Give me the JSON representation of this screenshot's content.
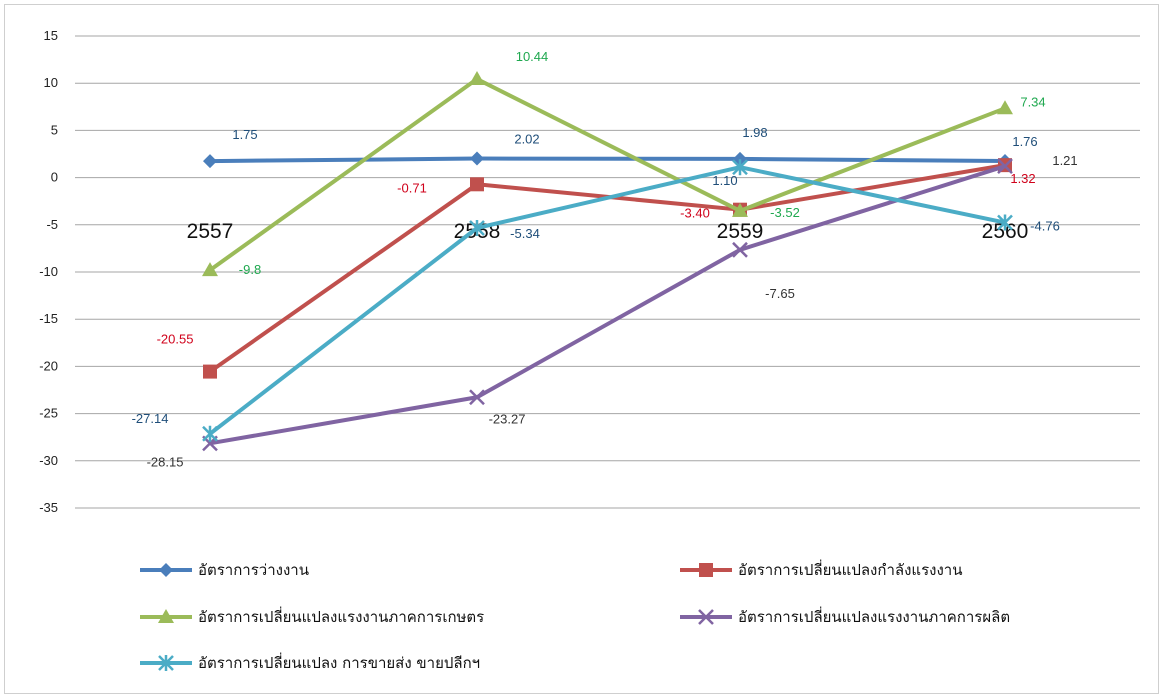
{
  "chart_data": {
    "type": "line",
    "categories": [
      "2557",
      "2558",
      "2559",
      "2560"
    ],
    "ylim": [
      -35,
      15
    ],
    "yticks": [
      15,
      10,
      5,
      0,
      -5,
      -10,
      -15,
      -20,
      -25,
      -30,
      -35
    ],
    "grid": true,
    "legend_position": "bottom",
    "series": [
      {
        "name": "อัตราการว่างงาน",
        "values": [
          1.75,
          2.02,
          1.98,
          1.76
        ],
        "labels": [
          "1.75",
          "2.02",
          "1.98",
          "1.76"
        ],
        "color": "#4a7ebb",
        "marker": "diamond"
      },
      {
        "name": "อัตราการเปลี่ยนแปลงกำลังแรงงาน",
        "values": [
          -20.55,
          -0.71,
          -3.4,
          1.32
        ],
        "labels": [
          "-20.55",
          "-0.71",
          "-3.40",
          "1.32"
        ],
        "color": "#c0504d",
        "marker": "square"
      },
      {
        "name": "อัตราการเปลี่ยนแปลงแรงงานภาคการเกษตร",
        "values": [
          -9.8,
          10.44,
          -3.52,
          7.34
        ],
        "labels": [
          "-9.8",
          "10.44",
          "-3.52",
          "7.34"
        ],
        "color": "#9bbb59",
        "marker": "triangle"
      },
      {
        "name": "อัตราการเปลี่ยนแปลงแรงงานภาคการผลิต",
        "values": [
          -28.15,
          -23.27,
          -7.65,
          1.21
        ],
        "labels": [
          "-28.15",
          "-23.27",
          "-7.65",
          "1.21"
        ],
        "color": "#8064a2",
        "marker": "x"
      },
      {
        "name": "อัตราการเปลี่ยนแปลง การขายส่ง ขายปลีกฯ",
        "values": [
          -27.14,
          -5.34,
          1.1,
          -4.76
        ],
        "labels": [
          "-27.14",
          "-5.34",
          "1.10",
          "-4.76"
        ],
        "color": "#4bacc6",
        "marker": "star"
      }
    ]
  },
  "colors": {
    "grid": "#a6a6a6",
    "label_red": "#d0021b",
    "label_green": "#1fa84f",
    "label_blue": "#1f4e79",
    "label_dark": "#333333"
  }
}
